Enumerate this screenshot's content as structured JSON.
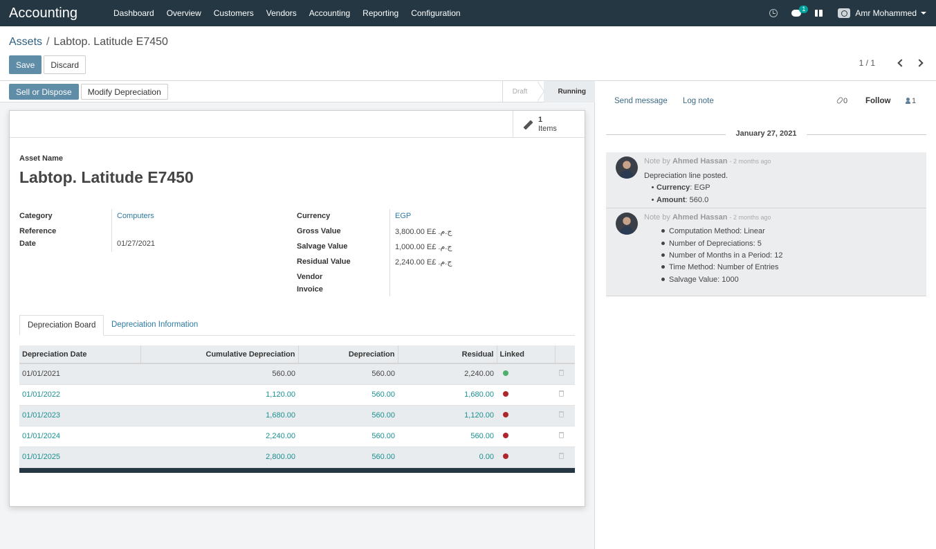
{
  "navbar": {
    "brand": "Accounting",
    "menu": [
      "Dashboard",
      "Overview",
      "Customers",
      "Vendors",
      "Accounting",
      "Reporting",
      "Configuration"
    ],
    "chat_badge": "1",
    "user_name": "Amr Mohammed"
  },
  "breadcrumb": {
    "parent": "Assets",
    "separator": "/",
    "current": "Labtop. Latitude E7450"
  },
  "control": {
    "save_label": "Save",
    "discard_label": "Discard",
    "pager": "1 / 1"
  },
  "statusbar": {
    "sell_label": "Sell or Dispose",
    "modify_label": "Modify Depreciation",
    "steps": [
      "Draft",
      "Running"
    ],
    "active_step": "Running"
  },
  "stat_button": {
    "count": "1",
    "label": "Items"
  },
  "asset": {
    "name_label": "Asset Name",
    "name": "Labtop. Latitude E7450",
    "category_label": "Category",
    "category": "Computers",
    "reference_label": "Reference",
    "reference": "",
    "date_label": "Date",
    "date": "01/27/2021",
    "currency_label": "Currency",
    "currency": "EGP",
    "gross_label": "Gross Value",
    "gross": "3,800.00 E£ ج.م.‏",
    "salvage_label": "Salvage Value",
    "salvage": "1,000.00 E£ ج.م.‏",
    "residual_label": "Residual Value",
    "residual": "2,240.00 E£ ج.م.‏",
    "vendor_label_1": "Vendor",
    "vendor_label_2": "Invoice"
  },
  "tabs": {
    "board": "Depreciation Board",
    "info": "Depreciation Information"
  },
  "board": {
    "headers": [
      "Depreciation Date",
      "Cumulative Depreciation",
      "Depreciation",
      "Residual",
      "Linked"
    ],
    "rows": [
      {
        "date": "01/01/2021",
        "cumulative": "560.00",
        "depreciation": "560.00",
        "residual": "2,240.00",
        "linked": true
      },
      {
        "date": "01/01/2022",
        "cumulative": "1,120.00",
        "depreciation": "560.00",
        "residual": "1,680.00",
        "linked": false
      },
      {
        "date": "01/01/2023",
        "cumulative": "1,680.00",
        "depreciation": "560.00",
        "residual": "1,120.00",
        "linked": false
      },
      {
        "date": "01/01/2024",
        "cumulative": "2,240.00",
        "depreciation": "560.00",
        "residual": "560.00",
        "linked": false
      },
      {
        "date": "01/01/2025",
        "cumulative": "2,800.00",
        "depreciation": "560.00",
        "residual": "0.00",
        "linked": false
      }
    ]
  },
  "colors": {
    "linked": "#4caf6a",
    "unlinked": "#b0262d",
    "navbar": "#243742",
    "primary": "#5f8ca7"
  },
  "chatter": {
    "send_message": "Send message",
    "log_note": "Log note",
    "attachments": "0",
    "follow": "Follow",
    "followers": "1",
    "date": "January 27, 2021",
    "messages": [
      {
        "prefix": "Note by",
        "author": "Ahmed Hassan",
        "ago": "- 2 months ago",
        "text": "Depreciation line posted.",
        "items": [
          {
            "key": "Currency",
            "value": ": EGP"
          },
          {
            "key": "Amount",
            "value": ": 560.0"
          }
        ]
      },
      {
        "prefix": "Note by",
        "author": "Ahmed Hassan",
        "ago": "- 2 months ago",
        "items": [
          "Computation Method: Linear",
          "Number of Depreciations: 5",
          "Number of Months in a Period: 12",
          "Time Method: Number of Entries",
          "Salvage Value: 1000"
        ]
      }
    ]
  }
}
